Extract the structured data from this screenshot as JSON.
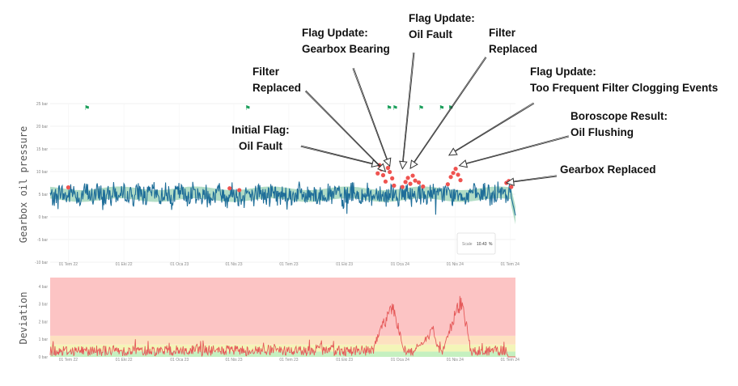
{
  "chart_data": [
    {
      "type": "line",
      "ylabel": "Gearbox oil pressure",
      "yticks": [
        "25 bar",
        "20 bar",
        "15 bar",
        "10 bar",
        "5 bar",
        "0 bar",
        "-5 bar",
        "-10 bar"
      ],
      "ytick_values": [
        25,
        20,
        15,
        10,
        5,
        0,
        -5,
        -10
      ],
      "ylim": [
        -10,
        25
      ],
      "xticks": [
        "01 Tem 22",
        "01 Eki 22",
        "01 Oca 23",
        "01 Nis 23",
        "01 Tem 23",
        "01 Eki 23",
        "01 Oca 24",
        "01 Nis 24",
        "01 Tem 24"
      ],
      "x_start": "2022-06-01",
      "x_end": "2024-07-10",
      "grid": true,
      "series": [
        {
          "type": "line",
          "color": "#1f6e99",
          "shape": "pressure",
          "base": 5.0,
          "noise_amp": 2.2,
          "noise_period_days": 3.5,
          "end_date": "2024-07-10",
          "end_value": 0.3
        },
        {
          "type": "band",
          "color": "#7ec7a0",
          "width_bar": 1.3
        },
        {
          "type": "points",
          "color": "#ef5350",
          "values": [
            {
              "date": "2022-07-01",
              "v": 6.5
            },
            {
              "date": "2023-03-25",
              "v": 6.3
            },
            {
              "date": "2023-04-10",
              "v": 5.9
            },
            {
              "date": "2023-11-25",
              "v": 9.6
            },
            {
              "date": "2023-11-28",
              "v": 11.4
            },
            {
              "date": "2023-12-01",
              "v": 10.5
            },
            {
              "date": "2023-12-04",
              "v": 9.2
            },
            {
              "date": "2023-12-08",
              "v": 7.8
            },
            {
              "date": "2023-12-12",
              "v": 10.8
            },
            {
              "date": "2023-12-15",
              "v": 9.9
            },
            {
              "date": "2023-12-19",
              "v": 8.5
            },
            {
              "date": "2023-12-22",
              "v": 6.9
            },
            {
              "date": "2024-01-05",
              "v": 6.6
            },
            {
              "date": "2024-01-10",
              "v": 7.7
            },
            {
              "date": "2024-01-14",
              "v": 8.6
            },
            {
              "date": "2024-01-18",
              "v": 7.3
            },
            {
              "date": "2024-01-22",
              "v": 9.1
            },
            {
              "date": "2024-01-26",
              "v": 8.0
            },
            {
              "date": "2024-02-01",
              "v": 7.6
            },
            {
              "date": "2024-02-08",
              "v": 6.7
            },
            {
              "date": "2024-03-20",
              "v": 7.2
            },
            {
              "date": "2024-03-25",
              "v": 8.8
            },
            {
              "date": "2024-03-29",
              "v": 9.7
            },
            {
              "date": "2024-04-02",
              "v": 10.6
            },
            {
              "date": "2024-04-06",
              "v": 9.3
            },
            {
              "date": "2024-04-10",
              "v": 8.1
            },
            {
              "date": "2024-06-25",
              "v": 7.5
            },
            {
              "date": "2024-06-29",
              "v": 7.9
            },
            {
              "date": "2024-07-03",
              "v": 6.6
            }
          ]
        }
      ],
      "flags": [
        {
          "date": "2022-08-01",
          "symbol": "⚑",
          "color": "#1a9e5a"
        },
        {
          "date": "2023-04-24",
          "symbol": "⚑",
          "color": "#1a9e5a"
        },
        {
          "date": "2023-12-14",
          "symbol": "⚑",
          "color": "#1a9e5a"
        },
        {
          "date": "2023-12-24",
          "symbol": "⚑",
          "color": "#1a9e5a"
        },
        {
          "date": "2024-02-05",
          "symbol": "⚑",
          "color": "#1a9e5a"
        },
        {
          "date": "2024-03-10",
          "symbol": "⚑",
          "color": "#1a9e5a"
        },
        {
          "date": "2024-03-25",
          "symbol": "⚑",
          "color": "#1a9e5a"
        }
      ],
      "scale_box": {
        "label": "Scale",
        "value": "10.43",
        "unit": "%"
      }
    },
    {
      "type": "line",
      "ylabel": "Deviation",
      "yticks": [
        "4 bar",
        "3 bar",
        "2 bar",
        "1 bar",
        "0 bar"
      ],
      "ytick_values": [
        4,
        3,
        2,
        1,
        0
      ],
      "ylim": [
        0,
        4.5
      ],
      "xticks": [
        "01 Tem 22",
        "01 Eki 22",
        "01 Oca 23",
        "01 Nis 23",
        "01 Tem 23",
        "01 Eki 23",
        "01 Oca 24",
        "01 Nis 24",
        "01 Tem 24"
      ],
      "x_start": "2022-06-01",
      "x_end": "2024-07-10",
      "zones": [
        {
          "from": 0.0,
          "to": 0.3,
          "color": "#c5f0c0"
        },
        {
          "from": 0.3,
          "to": 0.7,
          "color": "#f3f5b8"
        },
        {
          "from": 0.7,
          "to": 1.2,
          "color": "#fde0c0"
        },
        {
          "from": 1.2,
          "to": 4.5,
          "color": "#fcc4c4"
        }
      ],
      "series": [
        {
          "type": "line",
          "color": "#e55a5a",
          "base": 0.35,
          "noise_amp": 0.3,
          "noise_period_days": 3,
          "spikes": [
            {
              "date": "2022-10-20",
              "v": 1.0
            },
            {
              "date": "2022-11-10",
              "v": 0.9
            },
            {
              "date": "2022-12-15",
              "v": 0.8
            },
            {
              "date": "2023-02-05",
              "v": 0.9
            },
            {
              "date": "2023-05-20",
              "v": 0.8
            },
            {
              "date": "2023-08-15",
              "v": 0.7
            }
          ],
          "humps": [
            {
              "start": "2023-11-20",
              "peak": "2023-12-20",
              "end": "2024-01-05",
              "v": 3.2
            },
            {
              "start": "2024-01-25",
              "peak": "2024-02-25",
              "end": "2024-03-05",
              "v": 1.6
            },
            {
              "start": "2024-03-15",
              "peak": "2024-04-12",
              "end": "2024-04-25",
              "v": 3.5
            }
          ]
        }
      ]
    }
  ],
  "annotations": [
    {
      "lines": [
        "Initial Flag:",
        "Oil Fault"
      ],
      "align": "middle",
      "target": {
        "date": "2023-11-28",
        "v": 11.4
      }
    },
    {
      "lines": [
        "Filter",
        "Replaced"
      ],
      "align": "start",
      "target": {
        "date": "2023-12-08",
        "v": 10.0
      }
    },
    {
      "lines": [
        "Flag Update:",
        "Gearbox Bearing"
      ],
      "align": "start",
      "target": {
        "date": "2023-12-15",
        "v": 11.2
      }
    },
    {
      "lines": [
        "Flag Update:",
        "Oil Fault"
      ],
      "align": "start",
      "target": {
        "date": "2024-01-05",
        "v": 10.6
      }
    },
    {
      "lines": [
        "Filter",
        "Replaced"
      ],
      "align": "start",
      "target": {
        "date": "2024-01-18",
        "v": 10.7
      }
    },
    {
      "lines": [
        "Flag Update:",
        "Too Frequent Filter Clogging Events"
      ],
      "align": "start",
      "target": {
        "date": "2024-03-22",
        "v": 13.6
      }
    },
    {
      "lines": [
        "Boroscope Result:",
        "Oil Flushing"
      ],
      "align": "start",
      "target": {
        "date": "2024-04-08",
        "v": 11.3
      }
    },
    {
      "lines": [
        "Gearbox Replaced"
      ],
      "align": "start",
      "target": {
        "date": "2024-06-25",
        "v": 7.5
      }
    }
  ]
}
